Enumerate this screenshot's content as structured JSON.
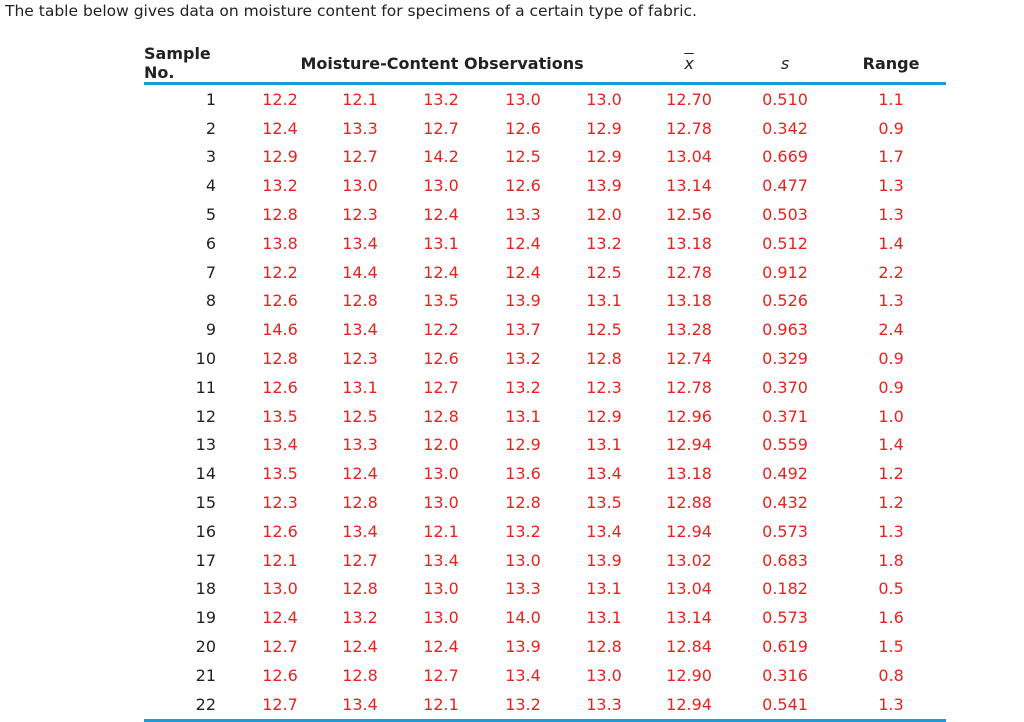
{
  "intro_text": "The table below gives data on moisture content for specimens of a certain type of fabric.",
  "headers": {
    "sample": "Sample No.",
    "observations": "Moisture-Content Observations",
    "mean": "x",
    "sd": "s",
    "range": "Range"
  },
  "colors": {
    "value_red": "#e8221f",
    "rule_blue": "#1e9ad6"
  },
  "rows": [
    {
      "n": "1",
      "obs": [
        "12.2",
        "12.1",
        "13.2",
        "13.0",
        "13.0"
      ],
      "mean": "12.70",
      "s": "0.510",
      "range": "1.1"
    },
    {
      "n": "2",
      "obs": [
        "12.4",
        "13.3",
        "12.7",
        "12.6",
        "12.9"
      ],
      "mean": "12.78",
      "s": "0.342",
      "range": "0.9"
    },
    {
      "n": "3",
      "obs": [
        "12.9",
        "12.7",
        "14.2",
        "12.5",
        "12.9"
      ],
      "mean": "13.04",
      "s": "0.669",
      "range": "1.7"
    },
    {
      "n": "4",
      "obs": [
        "13.2",
        "13.0",
        "13.0",
        "12.6",
        "13.9"
      ],
      "mean": "13.14",
      "s": "0.477",
      "range": "1.3"
    },
    {
      "n": "5",
      "obs": [
        "12.8",
        "12.3",
        "12.4",
        "13.3",
        "12.0"
      ],
      "mean": "12.56",
      "s": "0.503",
      "range": "1.3"
    },
    {
      "n": "6",
      "obs": [
        "13.8",
        "13.4",
        "13.1",
        "12.4",
        "13.2"
      ],
      "mean": "13.18",
      "s": "0.512",
      "range": "1.4"
    },
    {
      "n": "7",
      "obs": [
        "12.2",
        "14.4",
        "12.4",
        "12.4",
        "12.5"
      ],
      "mean": "12.78",
      "s": "0.912",
      "range": "2.2"
    },
    {
      "n": "8",
      "obs": [
        "12.6",
        "12.8",
        "13.5",
        "13.9",
        "13.1"
      ],
      "mean": "13.18",
      "s": "0.526",
      "range": "1.3"
    },
    {
      "n": "9",
      "obs": [
        "14.6",
        "13.4",
        "12.2",
        "13.7",
        "12.5"
      ],
      "mean": "13.28",
      "s": "0.963",
      "range": "2.4"
    },
    {
      "n": "10",
      "obs": [
        "12.8",
        "12.3",
        "12.6",
        "13.2",
        "12.8"
      ],
      "mean": "12.74",
      "s": "0.329",
      "range": "0.9"
    },
    {
      "n": "11",
      "obs": [
        "12.6",
        "13.1",
        "12.7",
        "13.2",
        "12.3"
      ],
      "mean": "12.78",
      "s": "0.370",
      "range": "0.9"
    },
    {
      "n": "12",
      "obs": [
        "13.5",
        "12.5",
        "12.8",
        "13.1",
        "12.9"
      ],
      "mean": "12.96",
      "s": "0.371",
      "range": "1.0"
    },
    {
      "n": "13",
      "obs": [
        "13.4",
        "13.3",
        "12.0",
        "12.9",
        "13.1"
      ],
      "mean": "12.94",
      "s": "0.559",
      "range": "1.4"
    },
    {
      "n": "14",
      "obs": [
        "13.5",
        "12.4",
        "13.0",
        "13.6",
        "13.4"
      ],
      "mean": "13.18",
      "s": "0.492",
      "range": "1.2"
    },
    {
      "n": "15",
      "obs": [
        "12.3",
        "12.8",
        "13.0",
        "12.8",
        "13.5"
      ],
      "mean": "12.88",
      "s": "0.432",
      "range": "1.2"
    },
    {
      "n": "16",
      "obs": [
        "12.6",
        "13.4",
        "12.1",
        "13.2",
        "13.4"
      ],
      "mean": "12.94",
      "s": "0.573",
      "range": "1.3"
    },
    {
      "n": "17",
      "obs": [
        "12.1",
        "12.7",
        "13.4",
        "13.0",
        "13.9"
      ],
      "mean": "13.02",
      "s": "0.683",
      "range": "1.8"
    },
    {
      "n": "18",
      "obs": [
        "13.0",
        "12.8",
        "13.0",
        "13.3",
        "13.1"
      ],
      "mean": "13.04",
      "s": "0.182",
      "range": "0.5"
    },
    {
      "n": "19",
      "obs": [
        "12.4",
        "13.2",
        "13.0",
        "14.0",
        "13.1"
      ],
      "mean": "13.14",
      "s": "0.573",
      "range": "1.6"
    },
    {
      "n": "20",
      "obs": [
        "12.7",
        "12.4",
        "12.4",
        "13.9",
        "12.8"
      ],
      "mean": "12.84",
      "s": "0.619",
      "range": "1.5"
    },
    {
      "n": "21",
      "obs": [
        "12.6",
        "12.8",
        "12.7",
        "13.4",
        "13.0"
      ],
      "mean": "12.90",
      "s": "0.316",
      "range": "0.8"
    },
    {
      "n": "22",
      "obs": [
        "12.7",
        "13.4",
        "12.1",
        "13.2",
        "13.3"
      ],
      "mean": "12.94",
      "s": "0.541",
      "range": "1.3"
    }
  ]
}
